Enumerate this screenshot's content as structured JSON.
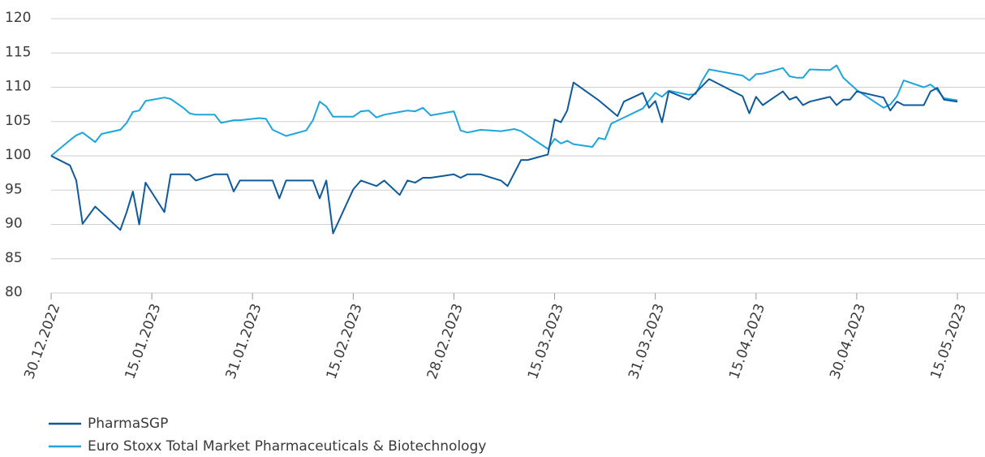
{
  "chart_data": {
    "type": "line",
    "xlim": [
      "30.12.2022",
      "15.05.2023"
    ],
    "xticks": [
      "30.12.2022",
      "15.01.2023",
      "31.01.2023",
      "15.02.2023",
      "28.02.2023",
      "15.03.2023",
      "31.03.2023",
      "15.04.2023",
      "30.04.2023",
      "15.05.2023"
    ],
    "ylim": [
      80,
      120
    ],
    "yticks": [
      80,
      85,
      90,
      95,
      100,
      105,
      110,
      115,
      120
    ],
    "grid": true,
    "legend": "bottom",
    "series": [
      {
        "name": "PharmaSGP",
        "color": "#0f5a9c",
        "x": [
          "30.12.2022",
          "02.01.2023",
          "03.01.2023",
          "04.01.2023",
          "06.01.2023",
          "10.01.2023",
          "11.01.2023",
          "12.01.2023",
          "13.01.2023",
          "14.01.2023",
          "17.01.2023",
          "18.01.2023",
          "21.01.2023",
          "22.01.2023",
          "25.01.2023",
          "27.01.2023",
          "28.01.2023",
          "29.01.2023",
          "03.02.2023",
          "04.02.2023",
          "05.02.2023",
          "09.02.2023",
          "10.02.2023",
          "11.02.2023",
          "12.02.2023",
          "15.02.2023",
          "16.02.2023",
          "18.02.2023",
          "19.02.2023",
          "21.02.2023",
          "22.02.2023",
          "23.02.2023",
          "24.02.2023",
          "25.02.2023",
          "28.02.2023",
          "01.03.2023",
          "02.03.2023",
          "04.03.2023",
          "07.03.2023",
          "08.03.2023",
          "10.03.2023",
          "11.03.2023",
          "14.03.2023",
          "15.03.2023",
          "16.03.2023",
          "17.03.2023",
          "18.03.2023",
          "22.03.2023",
          "25.03.2023",
          "26.03.2023",
          "29.03.2023",
          "30.03.2023",
          "31.03.2023",
          "01.04.2023",
          "02.04.2023",
          "05.04.2023",
          "08.04.2023",
          "13.04.2023",
          "14.04.2023",
          "15.04.2023",
          "16.04.2023",
          "19.04.2023",
          "20.04.2023",
          "21.04.2023",
          "22.04.2023",
          "23.04.2023",
          "26.04.2023",
          "27.04.2023",
          "28.04.2023",
          "29.04.2023",
          "30.04.2023",
          "04.05.2023",
          "05.05.2023",
          "06.05.2023",
          "07.05.2023",
          "10.05.2023",
          "11.05.2023",
          "12.05.2023",
          "13.05.2023",
          "15.05.2023"
        ],
        "values": [
          100,
          98.6,
          96.4,
          90.1,
          92.6,
          89.2,
          91.8,
          94.8,
          90,
          96.1,
          91.8,
          97.3,
          97.3,
          96.4,
          97.3,
          97.3,
          94.8,
          96.4,
          96.4,
          93.8,
          96.4,
          96.4,
          93.8,
          96.4,
          88.7,
          95.1,
          96.4,
          95.6,
          96.4,
          94.3,
          96.4,
          96.1,
          96.8,
          96.8,
          97.3,
          96.8,
          97.3,
          97.3,
          96.4,
          95.6,
          99.4,
          99.4,
          100.2,
          105.3,
          104.9,
          106.6,
          110.7,
          108.1,
          105.8,
          107.9,
          109.2,
          107,
          108,
          104.9,
          109.4,
          108.2,
          111.2,
          108.7,
          106.2,
          108.6,
          107.4,
          109.4,
          108.2,
          108.6,
          107.4,
          107.9,
          108.6,
          107.4,
          108.2,
          108.2,
          109.4,
          108.5,
          106.6,
          107.9,
          107.4,
          107.4,
          109.4,
          109.9,
          108.2,
          107.9
        ]
      },
      {
        "name": "Euro Stoxx Total Market Pharmaceuticals & Biotechnology",
        "color": "#1ea5dc",
        "x": [
          "30.12.2022",
          "02.01.2023",
          "03.01.2023",
          "04.01.2023",
          "06.01.2023",
          "07.01.2023",
          "10.01.2023",
          "11.01.2023",
          "12.01.2023",
          "13.01.2023",
          "14.01.2023",
          "17.01.2023",
          "18.01.2023",
          "20.01.2023",
          "21.01.2023",
          "22.01.2023",
          "25.01.2023",
          "26.01.2023",
          "28.01.2023",
          "29.01.2023",
          "01.02.2023",
          "02.02.2023",
          "03.02.2023",
          "05.02.2023",
          "08.02.2023",
          "09.02.2023",
          "10.02.2023",
          "11.02.2023",
          "12.02.2023",
          "15.02.2023",
          "16.02.2023",
          "17.02.2023",
          "18.02.2023",
          "19.02.2023",
          "21.02.2023",
          "22.02.2023",
          "23.02.2023",
          "24.02.2023",
          "25.02.2023",
          "28.02.2023",
          "01.03.2023",
          "02.03.2023",
          "04.03.2023",
          "07.03.2023",
          "09.03.2023",
          "10.03.2023",
          "14.03.2023",
          "15.03.2023",
          "16.03.2023",
          "17.03.2023",
          "18.03.2023",
          "21.03.2023",
          "22.03.2023",
          "23.03.2023",
          "24.03.2023",
          "29.03.2023",
          "31.03.2023",
          "01.04.2023",
          "02.04.2023",
          "05.04.2023",
          "06.04.2023",
          "07.04.2023",
          "08.04.2023",
          "13.04.2023",
          "14.04.2023",
          "15.04.2023",
          "16.04.2023",
          "19.04.2023",
          "20.04.2023",
          "21.04.2023",
          "22.04.2023",
          "23.04.2023",
          "26.04.2023",
          "27.04.2023",
          "28.04.2023",
          "30.04.2023",
          "04.05.2023",
          "05.05.2023",
          "06.05.2023",
          "07.05.2023",
          "10.05.2023",
          "11.05.2023",
          "12.05.2023",
          "13.05.2023",
          "15.05.2023"
        ],
        "values": [
          100,
          102.3,
          103,
          103.4,
          102,
          103.2,
          103.8,
          104.8,
          106.4,
          106.6,
          108,
          108.5,
          108.3,
          107,
          106.2,
          106,
          106,
          104.8,
          105.2,
          105.2,
          105.5,
          105.4,
          103.8,
          102.9,
          103.7,
          105.2,
          107.9,
          107.2,
          105.7,
          105.7,
          106.5,
          106.6,
          105.6,
          106,
          106.4,
          106.6,
          106.5,
          107,
          105.9,
          106.5,
          103.7,
          103.4,
          103.8,
          103.6,
          103.9,
          103.6,
          101,
          102.5,
          101.8,
          102.2,
          101.7,
          101.3,
          102.6,
          102.4,
          104.7,
          106.9,
          109.2,
          108.6,
          109.5,
          108.9,
          109,
          111,
          112.6,
          111.7,
          111,
          111.9,
          112,
          112.8,
          111.6,
          111.4,
          111.4,
          112.6,
          112.5,
          113.2,
          111.4,
          109.6,
          107,
          107.5,
          108.7,
          111,
          110,
          110.4,
          109.6,
          108.4,
          108.1
        ]
      }
    ]
  }
}
